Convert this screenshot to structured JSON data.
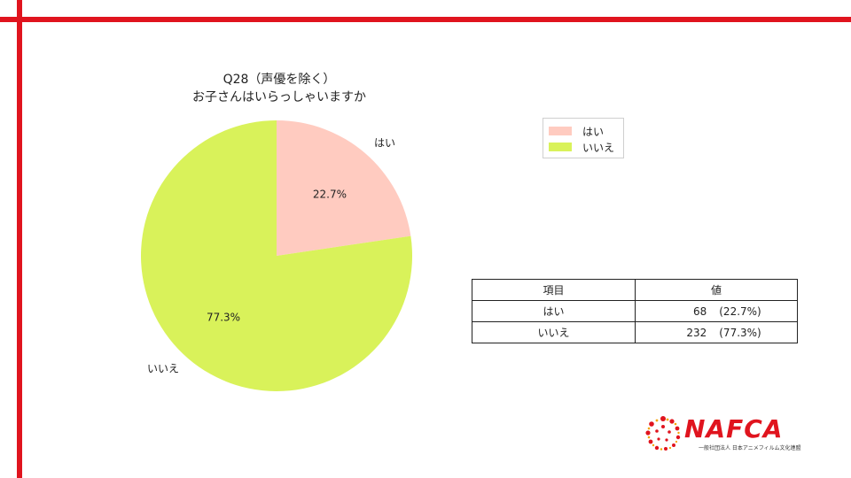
{
  "title_lines": [
    "Q28（声優を除く）",
    "お子さんはいらっしゃいますか"
  ],
  "chart_data": {
    "type": "pie",
    "title": "Q28（声優を除く） お子さんはいらっしゃいますか",
    "categories": [
      "はい",
      "いいえ"
    ],
    "values": [
      68,
      232
    ],
    "percent_labels": [
      "22.7%",
      "77.3%"
    ],
    "colors": [
      "#ffcbc0",
      "#d9f25a"
    ],
    "start": "top, clockwise",
    "legend": "top-right"
  },
  "legend": [
    {
      "label": "はい",
      "color": "#ffcbc0"
    },
    {
      "label": "いいえ",
      "color": "#d9f25a"
    }
  ],
  "table": {
    "headers": [
      "項目",
      "値"
    ],
    "rows": [
      {
        "label": "はい",
        "count": "68",
        "pct": "(22.7%)"
      },
      {
        "label": "いいえ",
        "count": "232",
        "pct": "(77.3%)"
      }
    ]
  },
  "logo": {
    "text": "NAFCA",
    "sub": "一般社団法人 日本アニメフィルム文化連盟",
    "accent": "#e0141e"
  }
}
